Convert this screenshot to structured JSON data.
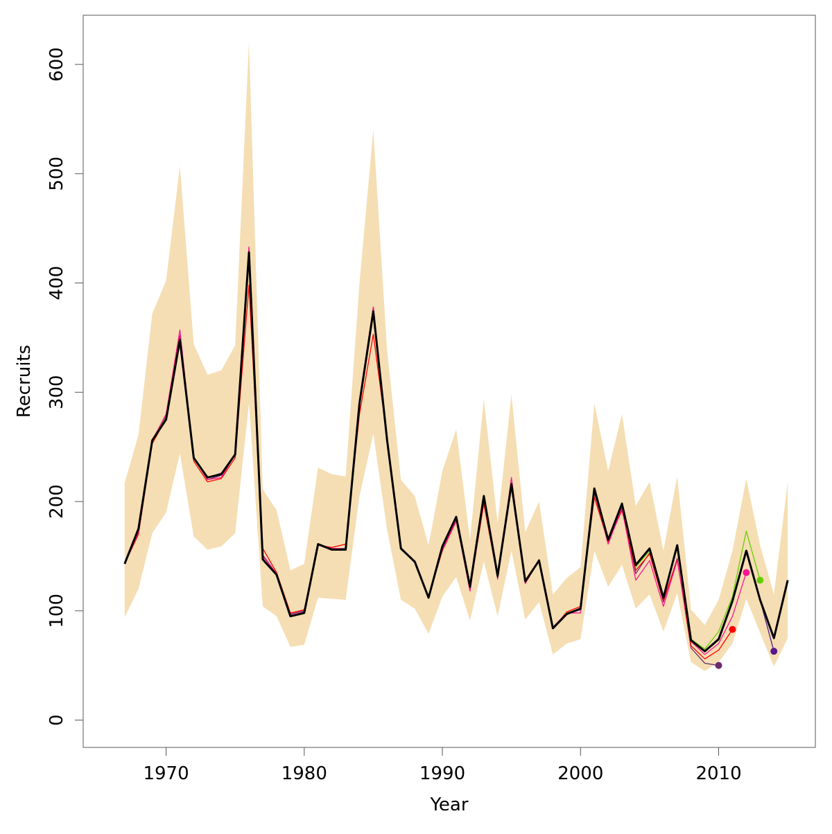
{
  "chart_data": {
    "type": "line",
    "xlabel": "Year",
    "ylabel": "Recruits",
    "xlim": [
      1964,
      2017
    ],
    "ylim": [
      -25,
      645
    ],
    "x_ticks": [
      1970,
      1980,
      1990,
      2000,
      2010
    ],
    "y_ticks": [
      0,
      100,
      200,
      300,
      400,
      500,
      600
    ],
    "grid": false,
    "legend": "none",
    "years": [
      1967,
      1968,
      1969,
      1970,
      1971,
      1972,
      1973,
      1974,
      1975,
      1976,
      1977,
      1978,
      1979,
      1980,
      1981,
      1982,
      1983,
      1984,
      1985,
      1986,
      1987,
      1988,
      1989,
      1990,
      1991,
      1992,
      1993,
      1994,
      1995,
      1996,
      1997,
      1998,
      1999,
      2000,
      2001,
      2002,
      2003,
      2004,
      2005,
      2006,
      2007,
      2008,
      2009,
      2010,
      2011,
      2012,
      2013,
      2014,
      2015
    ],
    "band": {
      "color": "#f5deb3",
      "upper": [
        217,
        261,
        372,
        402,
        507,
        344,
        316,
        320,
        343,
        621,
        211,
        192,
        137,
        143,
        231,
        225,
        223,
        400,
        540,
        338,
        220,
        205,
        160,
        228,
        266,
        165,
        294,
        180,
        298,
        172,
        200,
        115,
        130,
        140,
        290,
        228,
        280,
        196,
        218,
        155,
        223,
        101,
        87,
        110,
        155,
        221,
        160,
        115,
        218
      ],
      "lower": [
        94,
        120,
        171,
        190,
        244,
        168,
        156,
        159,
        171,
        290,
        104,
        95,
        67,
        69,
        112,
        111,
        110,
        205,
        262,
        174,
        110,
        102,
        79,
        113,
        131,
        91,
        145,
        95,
        155,
        92,
        108,
        60,
        70,
        74,
        155,
        122,
        142,
        102,
        115,
        81,
        116,
        53,
        45,
        53,
        70,
        111,
        80,
        49,
        75
      ]
    },
    "series": [
      {
        "color": "#6b2b6e",
        "end_year": 2010,
        "values": [
          143,
          172,
          256,
          278,
          352,
          240,
          220,
          224,
          243,
          432,
          151,
          134,
          97,
          100,
          161,
          157,
          157,
          292,
          378,
          258,
          157,
          144,
          112,
          157,
          185,
          120,
          204,
          131,
          219,
          126,
          147,
          85,
          98,
          102,
          208,
          164,
          194,
          134,
          153,
          108,
          148,
          66,
          52,
          50
        ]
      },
      {
        "color": "#ff0000",
        "end_year": 2011,
        "values": [
          143,
          170,
          253,
          276,
          345,
          237,
          218,
          221,
          240,
          398,
          157,
          135,
          98,
          101,
          160,
          158,
          161,
          280,
          353,
          258,
          158,
          145,
          113,
          155,
          182,
          120,
          198,
          130,
          218,
          125,
          146,
          84,
          99,
          104,
          204,
          163,
          192,
          137,
          152,
          109,
          147,
          68,
          56,
          64,
          83
        ]
      },
      {
        "color": "#ff1493",
        "end_year": 2012,
        "values": [
          143,
          172,
          256,
          280,
          357,
          240,
          220,
          222,
          243,
          433,
          150,
          134,
          96,
          99,
          161,
          157,
          157,
          293,
          378,
          258,
          157,
          145,
          112,
          156,
          183,
          118,
          205,
          129,
          222,
          125,
          147,
          85,
          98,
          98,
          210,
          161,
          194,
          128,
          146,
          104,
          146,
          72,
          60,
          70,
          95,
          135
        ]
      },
      {
        "color": "#66cc00",
        "end_year": 2013,
        "values": [
          143,
          174,
          256,
          277,
          349,
          240,
          222,
          226,
          244,
          427,
          148,
          133,
          95,
          98,
          161,
          156,
          157,
          290,
          374,
          256,
          156,
          145,
          112,
          159,
          186,
          121,
          206,
          132,
          218,
          127,
          146,
          84,
          98,
          101,
          211,
          165,
          199,
          140,
          155,
          111,
          159,
          74,
          65,
          81,
          113,
          173,
          128
        ]
      },
      {
        "color": "#551a8b",
        "end_year": 2014,
        "values": [
          143,
          175,
          256,
          276,
          348,
          240,
          222,
          226,
          244,
          428,
          148,
          133,
          95,
          99,
          161,
          156,
          157,
          291,
          374,
          258,
          157,
          145,
          112,
          158,
          185,
          121,
          204,
          130,
          217,
          127,
          146,
          85,
          97,
          101,
          211,
          165,
          197,
          141,
          157,
          111,
          159,
          74,
          63,
          75,
          108,
          155,
          110,
          63
        ]
      },
      {
        "color": "#000000",
        "end_year": 2015,
        "values": [
          143,
          175,
          256,
          275,
          348,
          240,
          222,
          225,
          243,
          428,
          147,
          133,
          95,
          98,
          161,
          156,
          156,
          290,
          374,
          256,
          157,
          145,
          112,
          159,
          186,
          122,
          205,
          132,
          216,
          127,
          146,
          84,
          97,
          102,
          212,
          165,
          198,
          142,
          157,
          112,
          160,
          73,
          63,
          74,
          109,
          155,
          110,
          75,
          128
        ]
      }
    ]
  }
}
